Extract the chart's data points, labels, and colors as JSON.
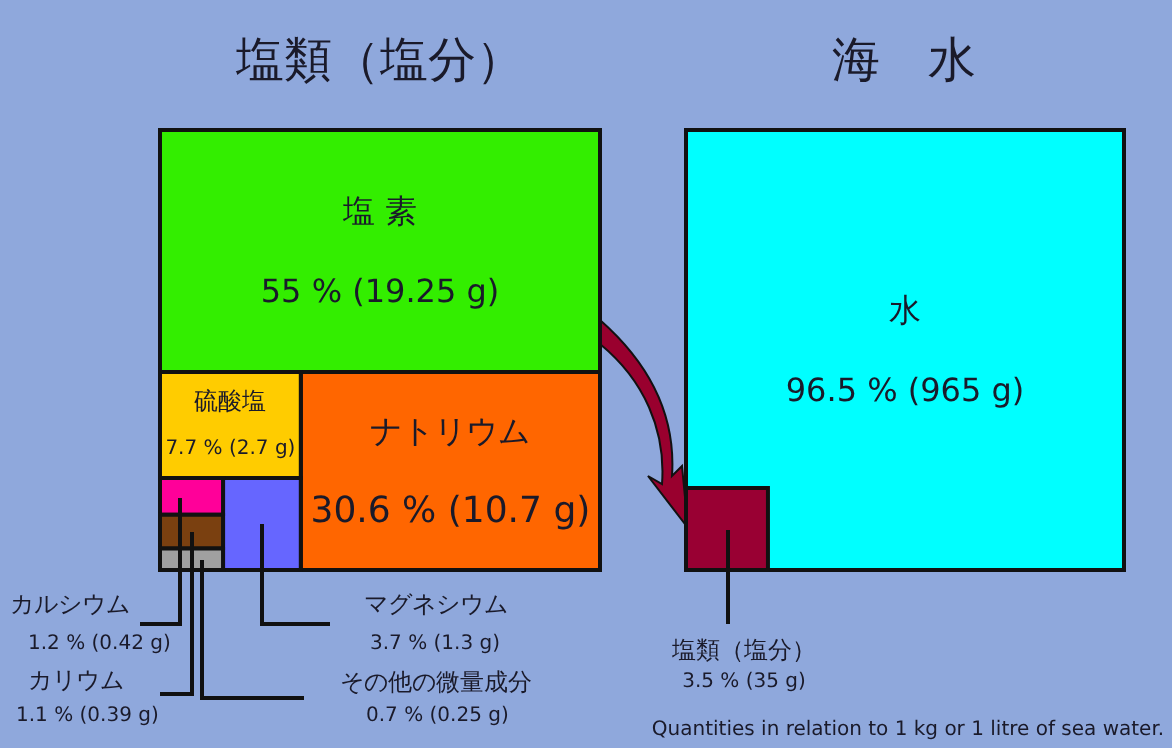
{
  "chart_data": [
    {
      "type": "other",
      "title": "塩類（塩分）",
      "categories": [
        "塩 素",
        "ナトリウム",
        "硫酸塩",
        "マグネシウム",
        "カルシウム",
        "カリウム",
        "その他の微量成分"
      ],
      "values": [
        55,
        30.6,
        7.7,
        3.7,
        1.2,
        1.1,
        0.7
      ],
      "value_labels": [
        "55 % (19.25 g)",
        "30.6 % (10.7 g)",
        "7.7 % (2.7 g)",
        "3.7 % (1.3 g)",
        "1.2 % (0.42 g)",
        "1.1 % (0.39 g)",
        "0.7 % (0.25 g)"
      ],
      "colors": [
        "#33ee00",
        "#ff6600",
        "#ffcc00",
        "#6666ff",
        "#ff0099",
        "#7a4010",
        "#a0a0a0"
      ]
    },
    {
      "type": "other",
      "title": "海　水",
      "categories": [
        "水",
        "塩類（塩分）"
      ],
      "values": [
        96.5,
        3.5
      ],
      "value_labels": [
        "96.5 % (965 g)",
        "3.5 % (35 g)"
      ],
      "colors": [
        "#00ffff",
        "#990033"
      ],
      "annotations": [
        "Quantities in relation to 1 kg or 1 litre of sea water."
      ]
    }
  ]
}
